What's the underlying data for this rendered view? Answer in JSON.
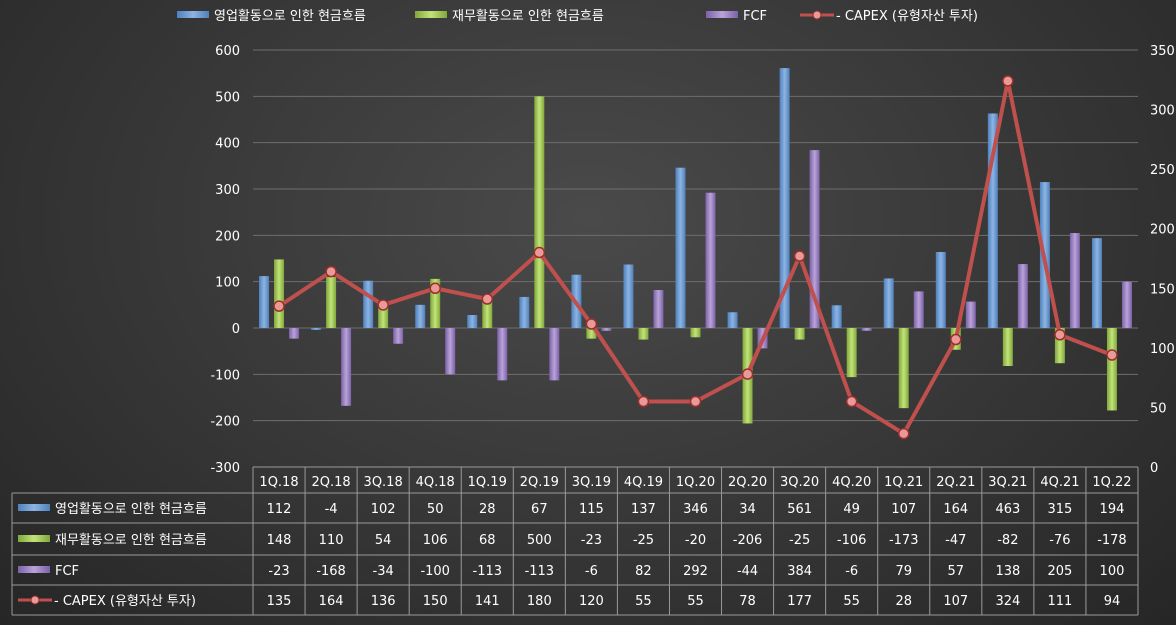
{
  "chart_data": {
    "type": "bar",
    "title": "",
    "categories": [
      "1Q.18",
      "2Q.18",
      "3Q.18",
      "4Q.18",
      "1Q.19",
      "2Q.19",
      "3Q.19",
      "4Q.19",
      "1Q.20",
      "2Q.20",
      "3Q.20",
      "4Q.20",
      "1Q.21",
      "2Q.21",
      "3Q.21",
      "4Q.21",
      "1Q.22"
    ],
    "series": [
      {
        "name": "영업활동으로 인한 현금흐름",
        "type": "bar",
        "axis": "left",
        "color": "#8db4e2",
        "values": [
          112,
          -4,
          102,
          50,
          28,
          67,
          115,
          137,
          346,
          34,
          561,
          49,
          107,
          164,
          463,
          315,
          194
        ]
      },
      {
        "name": "재무활동으로 인한 현금흐름",
        "type": "bar",
        "axis": "left",
        "color": "#c3e37a",
        "values": [
          148,
          110,
          54,
          106,
          68,
          500,
          -23,
          -25,
          -20,
          -206,
          -25,
          -106,
          -173,
          -47,
          -82,
          -76,
          -178
        ]
      },
      {
        "name": "FCF",
        "type": "bar",
        "axis": "left",
        "color": "#b9a3d8",
        "values": [
          -23,
          -168,
          -34,
          -100,
          -113,
          -113,
          -6,
          82,
          292,
          -44,
          384,
          -6,
          79,
          57,
          138,
          205,
          100
        ]
      },
      {
        "name": "- CAPEX (유형자산 투자)",
        "type": "line",
        "axis": "right",
        "color": "#c0504d",
        "values": [
          135,
          164,
          136,
          150,
          141,
          180,
          120,
          55,
          55,
          78,
          177,
          55,
          28,
          107,
          324,
          111,
          94
        ]
      }
    ],
    "yleft": {
      "min": -300,
      "max": 600,
      "ticks": [
        600,
        500,
        400,
        300,
        200,
        100,
        0,
        -100,
        -200,
        -300
      ]
    },
    "yright": {
      "min": 0,
      "max": 350,
      "ticks": [
        350,
        300,
        250,
        200,
        150,
        100,
        50,
        0
      ]
    },
    "legend_placement": "top",
    "grid": true,
    "data_table": true
  }
}
